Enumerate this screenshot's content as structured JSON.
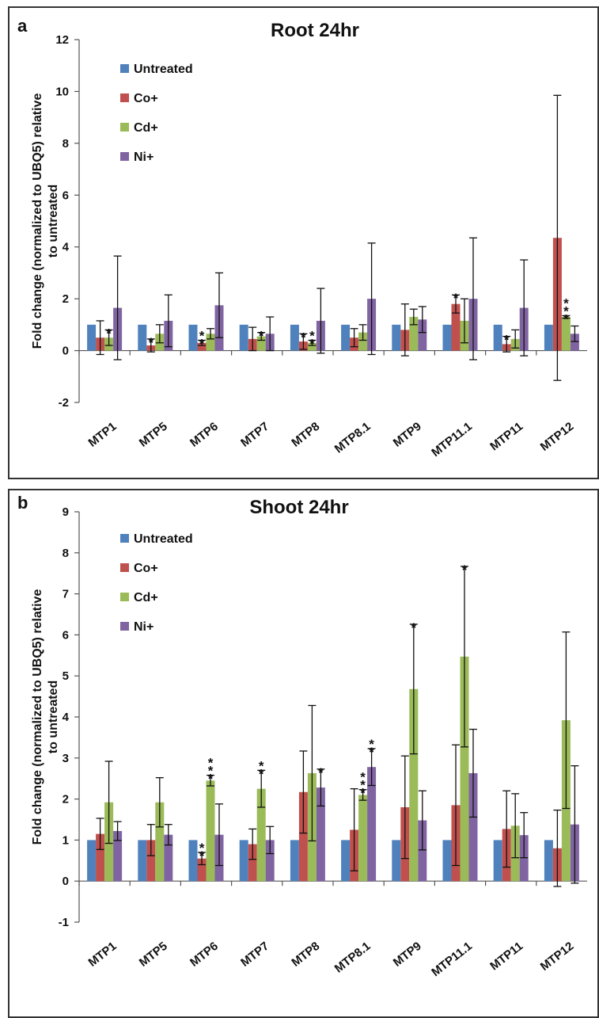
{
  "colors": {
    "Untreated": "#4f81bd",
    "Co+": "#c0504d",
    "Cd+": "#9bbb59",
    "Ni+": "#8064a2"
  },
  "chart_data": [
    {
      "panel": "a",
      "type": "bar",
      "title": "Root 24hr",
      "ylabel": "Fold change (normalized to UBQ5) relative to untreated",
      "ylim": [
        -2,
        12
      ],
      "yticks": [
        -2,
        0,
        2,
        4,
        6,
        8,
        10,
        12
      ],
      "categories": [
        "MTP1",
        "MTP5",
        "MTP6",
        "MTP7",
        "MTP8",
        "MTP8.1",
        "MTP9",
        "MTP11.1",
        "MTP11",
        "MTP12"
      ],
      "legend_position": "top-left",
      "series": [
        {
          "name": "Untreated",
          "values": [
            1,
            1,
            1,
            1,
            1,
            1,
            1,
            1,
            1,
            1
          ],
          "errors": [
            0,
            0,
            0,
            0,
            0,
            0,
            0,
            0,
            0,
            0
          ],
          "sig": [
            "",
            "",
            "",
            "",
            "",
            "",
            "",
            "",
            "",
            ""
          ]
        },
        {
          "name": "Co+",
          "values": [
            0.5,
            0.2,
            0.3,
            0.45,
            0.35,
            0.5,
            0.8,
            1.8,
            0.25,
            4.35
          ],
          "errors": [
            0.65,
            0.25,
            0.1,
            0.45,
            0.3,
            0.35,
            1.0,
            0.35,
            0.3,
            5.5
          ],
          "sig": [
            "",
            "*",
            "**",
            "",
            "*",
            "",
            "",
            "*",
            "*",
            ""
          ]
        },
        {
          "name": "Cd+",
          "values": [
            0.5,
            0.65,
            0.65,
            0.55,
            0.3,
            0.7,
            1.3,
            1.15,
            0.45,
            1.3
          ],
          "errors": [
            0.3,
            0.35,
            0.2,
            0.15,
            0.1,
            0.3,
            0.3,
            0.85,
            0.35,
            0.05
          ],
          "sig": [
            "*",
            "",
            "",
            "*",
            "**",
            "",
            "",
            "",
            "",
            "***"
          ]
        },
        {
          "name": "Ni+",
          "values": [
            1.65,
            1.15,
            1.75,
            0.65,
            1.15,
            2.0,
            1.2,
            2.0,
            1.65,
            0.65
          ],
          "errors": [
            2.0,
            1.0,
            1.25,
            0.65,
            1.25,
            2.15,
            0.5,
            2.35,
            1.85,
            0.3
          ],
          "sig": [
            "",
            "",
            "",
            "",
            "",
            "",
            "",
            "",
            "",
            ""
          ]
        }
      ]
    },
    {
      "panel": "b",
      "type": "bar",
      "title": "Shoot 24hr",
      "ylabel": "Fold change (normalized to UBQ5) relative to untreated",
      "ylim": [
        -1,
        9
      ],
      "yticks": [
        -1,
        0,
        1,
        2,
        3,
        4,
        5,
        6,
        7,
        8,
        9
      ],
      "categories": [
        "MTP1",
        "MTP5",
        "MTP6",
        "MTP7",
        "MTP8",
        "MTP8.1",
        "MTP9",
        "MTP11.1",
        "MTP11",
        "MTP12"
      ],
      "legend_position": "top-left",
      "series": [
        {
          "name": "Untreated",
          "values": [
            1,
            1,
            1,
            1,
            1,
            1,
            1,
            1,
            1,
            1
          ],
          "errors": [
            0,
            0,
            0,
            0,
            0,
            0,
            0,
            0,
            0,
            0
          ],
          "sig": [
            "",
            "",
            "",
            "",
            "",
            "",
            "",
            "",
            "",
            ""
          ]
        },
        {
          "name": "Co+",
          "values": [
            1.15,
            1.0,
            0.55,
            0.9,
            2.17,
            1.25,
            1.8,
            1.85,
            1.27,
            0.8
          ],
          "errors": [
            0.38,
            0.38,
            0.15,
            0.37,
            1.0,
            1.0,
            1.25,
            1.47,
            0.93,
            0.93
          ],
          "sig": [
            "",
            "",
            "**",
            "",
            "",
            "",
            "",
            "",
            "",
            ""
          ]
        },
        {
          "name": "Cd+",
          "values": [
            1.92,
            1.92,
            2.45,
            2.25,
            2.63,
            2.1,
            4.68,
            5.47,
            1.35,
            3.92
          ],
          "errors": [
            1.0,
            0.6,
            0.13,
            0.45,
            1.65,
            0.13,
            1.58,
            2.2,
            0.78,
            2.15
          ],
          "sig": [
            "",
            "",
            "***",
            "**",
            "",
            "***",
            "*",
            "*",
            "",
            ""
          ]
        },
        {
          "name": "Ni+",
          "values": [
            1.22,
            1.13,
            1.13,
            1.0,
            2.28,
            2.78,
            1.48,
            2.63,
            1.12,
            1.38
          ],
          "errors": [
            0.23,
            0.25,
            0.75,
            0.33,
            0.45,
            0.45,
            0.72,
            1.07,
            0.55,
            1.43
          ],
          "sig": [
            "",
            "",
            "",
            "",
            "*",
            "**",
            "",
            "",
            "",
            ""
          ]
        }
      ]
    }
  ]
}
